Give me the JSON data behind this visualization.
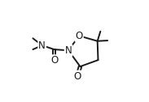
{
  "bg_color": "#ffffff",
  "line_color": "#1a1a1a",
  "line_width": 1.4,
  "figsize": [
    1.83,
    1.26
  ],
  "dpi": 100,
  "xlim": [
    0,
    1
  ],
  "ylim": [
    0,
    1
  ]
}
